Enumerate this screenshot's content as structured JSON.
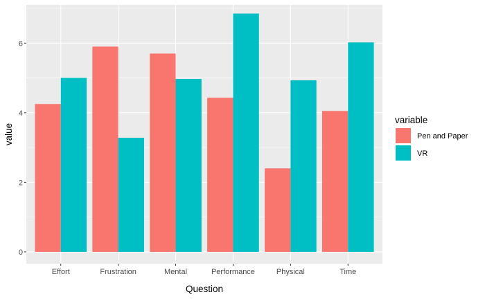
{
  "chart_data": {
    "type": "bar",
    "xlabel": "Question",
    "ylabel": "value",
    "categories": [
      "Effort",
      "Frustration",
      "Mental",
      "Performance",
      "Physical",
      "Time"
    ],
    "series": [
      {
        "name": "Pen and Paper",
        "color": "#F8766D",
        "values": [
          4.25,
          5.9,
          5.7,
          4.43,
          2.4,
          4.05
        ]
      },
      {
        "name": "VR",
        "color": "#00BFC4",
        "values": [
          5.0,
          3.28,
          4.97,
          6.85,
          4.93,
          6.02
        ]
      }
    ],
    "y_ticks": [
      "0",
      "2",
      "4",
      "6"
    ],
    "ylim": [
      -0.34,
      7.1
    ],
    "legend": {
      "title": "variable",
      "position": "right"
    },
    "grid": true,
    "panel_background": "#EBEBEB"
  }
}
